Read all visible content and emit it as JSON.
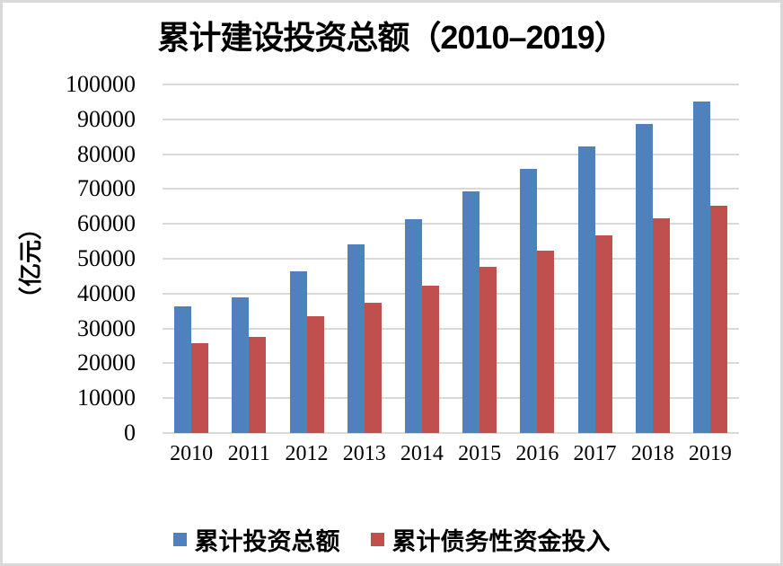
{
  "page": {
    "background_color": "#FFFFFF",
    "border_color": "#D9D9D9"
  },
  "chart_data": {
    "type": "bar",
    "title": "累计建设投资总额（2010–2019）",
    "ylabel": "（亿元）",
    "xlabel": "",
    "categories": [
      "2010",
      "2011",
      "2012",
      "2013",
      "2014",
      "2015",
      "2016",
      "2017",
      "2018",
      "2019"
    ],
    "series": [
      {
        "name": "累计投资总额",
        "color": "#4F81BD",
        "values": [
          36400,
          39000,
          46300,
          54200,
          61400,
          69300,
          75800,
          82200,
          88600,
          95100
        ]
      },
      {
        "name": "累计债务性资金投入",
        "color": "#C0504D",
        "values": [
          25800,
          27700,
          33600,
          37300,
          42400,
          47600,
          52200,
          56600,
          61700,
          65300
        ]
      }
    ],
    "ylim": [
      0,
      100000
    ],
    "ytick_step": 10000,
    "ytick_labels": [
      "0",
      "10000",
      "20000",
      "30000",
      "40000",
      "50000",
      "60000",
      "70000",
      "80000",
      "90000",
      "100000"
    ],
    "grid": true,
    "gridline_color": "#D9D9D9",
    "legend_position": "bottom"
  }
}
